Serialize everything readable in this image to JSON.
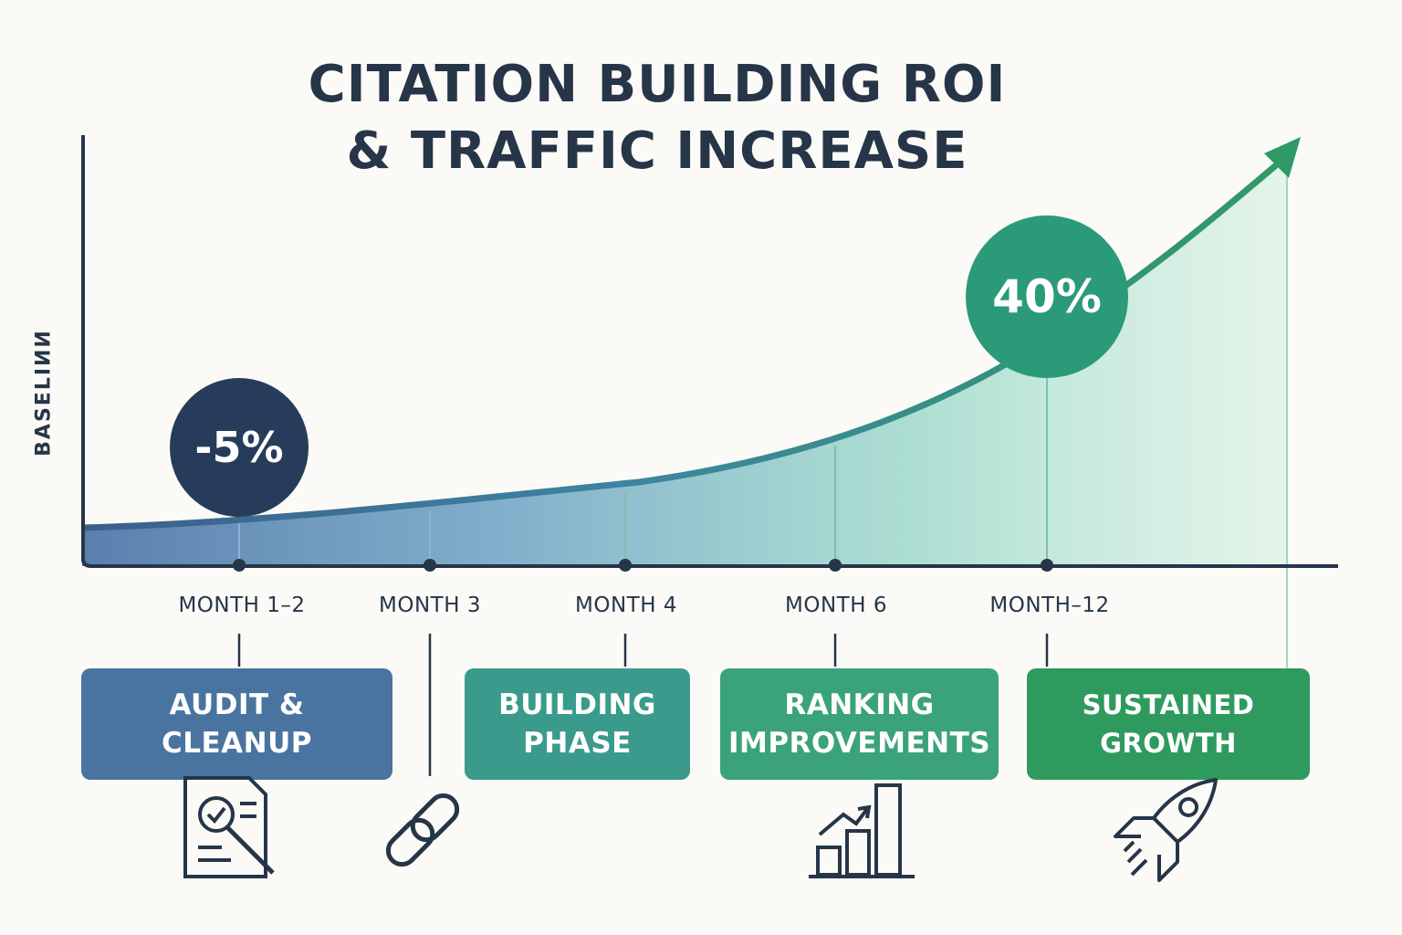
{
  "title_lines": [
    "CITATION BUILDING ROI",
    "& TRAFFIC INCREASE"
  ],
  "colors": {
    "navy": "#263c5a",
    "blue": "#4a74a0",
    "teal": "#3a9b8c",
    "green": "#3aa37a",
    "dark_green": "#2b9a78",
    "background": "#fbfaf6"
  },
  "chart_data": {
    "type": "area",
    "ylabel": "BASELIИИ",
    "xlabel": "",
    "categories": [
      "MONTH 1–2",
      "MONTH 3",
      "MONTH 4",
      "MONTH 6",
      "MONTH–12"
    ],
    "annotations": [
      {
        "category": "MONTH 1–2",
        "label": "-5%",
        "value": -5
      },
      {
        "category": "MONTH–12",
        "label": "40%",
        "value": 40
      }
    ],
    "trend": "accelerating growth, arrow pointing up-right",
    "grid": false,
    "legend": "none"
  },
  "phases": [
    {
      "line1": "AUDIT &",
      "line2": "CLEANUP",
      "icon": "audit-document-icon",
      "color": "#4a74a0"
    },
    {
      "line1": "BUILDING",
      "line2": "PHASE",
      "icon": "chain-link-icon",
      "color": "#3a9b8c"
    },
    {
      "line1": "RANKING",
      "line2": "IMPROVEMENTS",
      "icon": "bar-chart-icon",
      "color": "#3aa37a"
    },
    {
      "line1": "SUSTAINED",
      "line2": "GROWTH",
      "icon": "rocket-icon",
      "color": "#2f9a5e"
    }
  ]
}
